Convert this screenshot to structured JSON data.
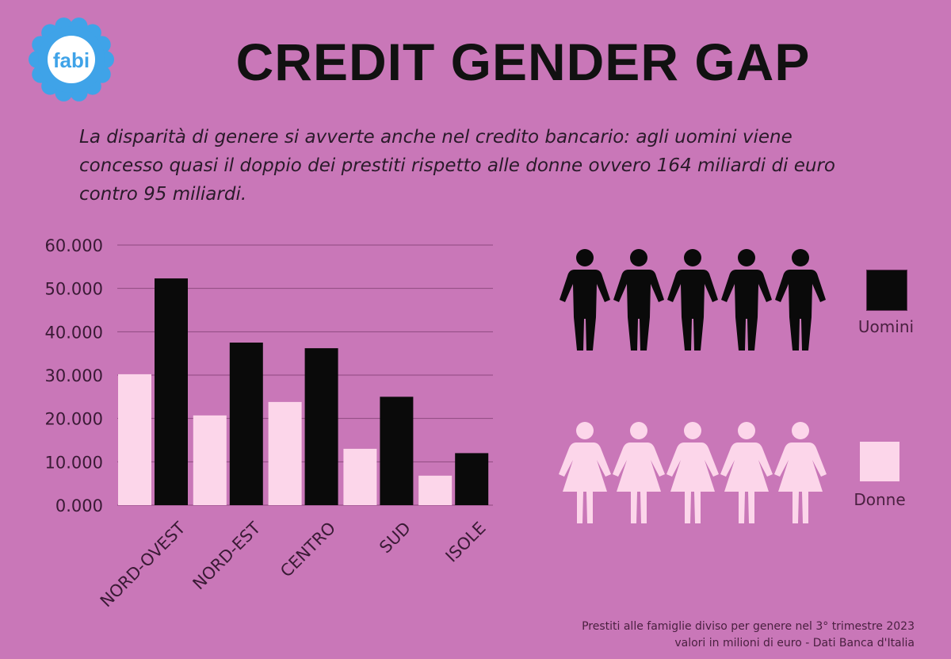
{
  "logo": {
    "text": "fabi",
    "petal_color": "#3fa3e8"
  },
  "title": "CREDIT GENDER GAP",
  "subtitle": "La disparità di genere si avverte anche nel credito bancario: agli uomini viene concesso quasi il doppio dei prestiti rispetto alle donne ovvero 164 miliardi di euro contro 95 miliardi.",
  "legend": {
    "uomini": {
      "label": "Uomini",
      "color": "#0a0a0a"
    },
    "donne": {
      "label": "Donne",
      "color": "#fcd6ea"
    }
  },
  "footnote": {
    "line1": "Prestiti alle famiglie diviso per genere nel 3° trimestre 2023",
    "line2": "valori in milioni di euro - Dati Banca d'Italia"
  },
  "chart_data": {
    "type": "bar",
    "categories": [
      "NORD-OVEST",
      "NORD-EST",
      "CENTRO",
      "SUD",
      "ISOLE"
    ],
    "series": [
      {
        "name": "Donne",
        "color": "#fcd6ea",
        "values": [
          30200,
          20700,
          23800,
          13000,
          6800
        ]
      },
      {
        "name": "Uomini",
        "color": "#0a0a0a",
        "values": [
          52300,
          37500,
          36200,
          25000,
          12000
        ]
      }
    ],
    "ylim": [
      0,
      60000
    ],
    "yticks": [
      "0.000",
      "10.000",
      "20.000",
      "30.000",
      "40.000",
      "50.000",
      "60.000"
    ],
    "grid": true,
    "legend_position": "right"
  }
}
